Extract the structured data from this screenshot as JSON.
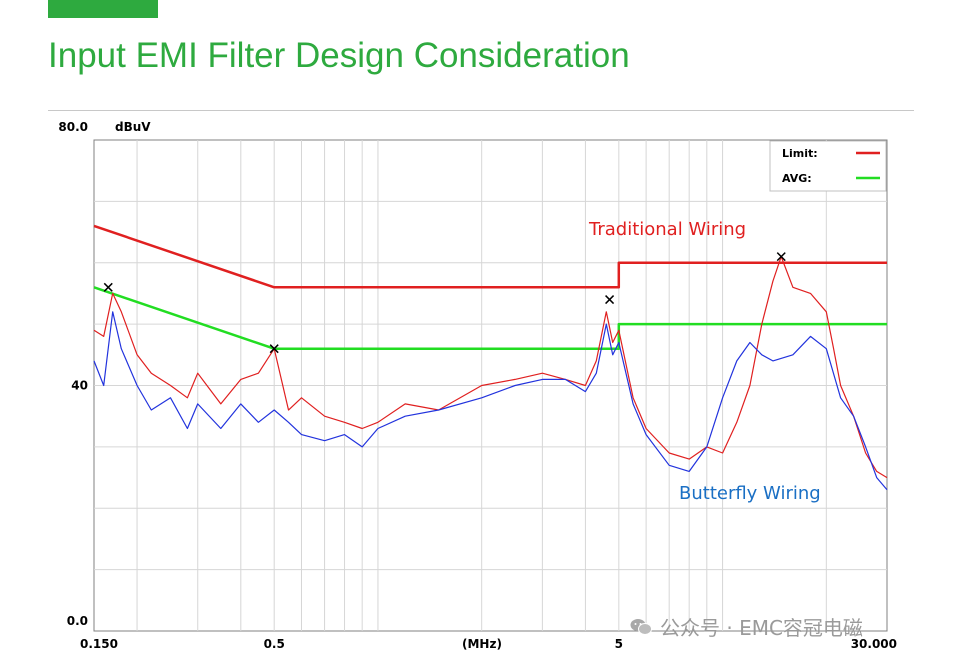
{
  "slide": {
    "title": "Input EMI Filter Design Consideration",
    "accent_color": "#2eaa3f"
  },
  "watermark": {
    "text": "公众号 · EMC容冠电磁",
    "icon": "wechat-icon"
  },
  "chart_data": {
    "type": "line",
    "title": "",
    "ylabel": "dBuV",
    "xlabel": "(MHz)",
    "x_scale": "log",
    "xlim": [
      0.15,
      30
    ],
    "ylim": [
      0,
      80
    ],
    "y_top_label": "80.0",
    "x_ticks": [
      {
        "value": 0.15,
        "label": "0.150"
      },
      {
        "value": 0.5,
        "label": "0.5"
      },
      {
        "value": 5,
        "label": "5"
      },
      {
        "value": 30,
        "label": "30.000"
      }
    ],
    "y_ticks": [
      {
        "value": 80,
        "label": "80.0"
      },
      {
        "value": 40,
        "label": "40"
      },
      {
        "value": 0,
        "label": "0.0"
      }
    ],
    "grid": true,
    "legend": {
      "position": "top-right",
      "entries": [
        {
          "name": "Limit:",
          "color": "#e02020"
        },
        {
          "name": "AVG:",
          "color": "#22dd22"
        }
      ]
    },
    "series": [
      {
        "name": "Limit:",
        "color": "#e02020",
        "points": [
          [
            0.15,
            66
          ],
          [
            0.5,
            56
          ],
          [
            5,
            56
          ],
          [
            5,
            60
          ],
          [
            30,
            60
          ]
        ]
      },
      {
        "name": "AVG:",
        "color": "#22dd22",
        "points": [
          [
            0.15,
            56
          ],
          [
            0.5,
            46
          ],
          [
            5,
            46
          ],
          [
            5,
            50
          ],
          [
            30,
            50
          ]
        ]
      },
      {
        "name": "Traditional Wiring",
        "color": "#e02020",
        "points": [
          [
            0.15,
            49
          ],
          [
            0.16,
            48
          ],
          [
            0.17,
            55
          ],
          [
            0.18,
            52
          ],
          [
            0.2,
            45
          ],
          [
            0.22,
            42
          ],
          [
            0.25,
            40
          ],
          [
            0.28,
            38
          ],
          [
            0.3,
            42
          ],
          [
            0.35,
            37
          ],
          [
            0.4,
            41
          ],
          [
            0.45,
            42
          ],
          [
            0.5,
            46
          ],
          [
            0.55,
            36
          ],
          [
            0.6,
            38
          ],
          [
            0.7,
            35
          ],
          [
            0.8,
            34
          ],
          [
            0.9,
            33
          ],
          [
            1.0,
            34
          ],
          [
            1.2,
            37
          ],
          [
            1.5,
            36
          ],
          [
            2.0,
            40
          ],
          [
            2.5,
            41
          ],
          [
            3.0,
            42
          ],
          [
            3.5,
            41
          ],
          [
            4.0,
            40
          ],
          [
            4.3,
            44
          ],
          [
            4.6,
            52
          ],
          [
            4.8,
            47
          ],
          [
            5.0,
            49
          ],
          [
            5.5,
            38
          ],
          [
            6.0,
            33
          ],
          [
            7.0,
            29
          ],
          [
            8.0,
            28
          ],
          [
            9.0,
            30
          ],
          [
            10.0,
            29
          ],
          [
            11.0,
            34
          ],
          [
            12.0,
            40
          ],
          [
            13.0,
            50
          ],
          [
            14.0,
            57
          ],
          [
            14.8,
            61
          ],
          [
            16.0,
            56
          ],
          [
            18.0,
            55
          ],
          [
            20.0,
            52
          ],
          [
            21.0,
            46
          ],
          [
            22.0,
            40
          ],
          [
            24.0,
            35
          ],
          [
            26.0,
            29
          ],
          [
            28.0,
            26
          ],
          [
            30.0,
            25
          ]
        ]
      },
      {
        "name": "Butterfly Wiring",
        "color": "#2233dd",
        "points": [
          [
            0.15,
            44
          ],
          [
            0.16,
            40
          ],
          [
            0.17,
            52
          ],
          [
            0.18,
            46
          ],
          [
            0.2,
            40
          ],
          [
            0.22,
            36
          ],
          [
            0.25,
            38
          ],
          [
            0.28,
            33
          ],
          [
            0.3,
            37
          ],
          [
            0.35,
            33
          ],
          [
            0.4,
            37
          ],
          [
            0.45,
            34
          ],
          [
            0.5,
            36
          ],
          [
            0.55,
            34
          ],
          [
            0.6,
            32
          ],
          [
            0.7,
            31
          ],
          [
            0.8,
            32
          ],
          [
            0.9,
            30
          ],
          [
            1.0,
            33
          ],
          [
            1.2,
            35
          ],
          [
            1.5,
            36
          ],
          [
            2.0,
            38
          ],
          [
            2.5,
            40
          ],
          [
            3.0,
            41
          ],
          [
            3.5,
            41
          ],
          [
            4.0,
            39
          ],
          [
            4.3,
            42
          ],
          [
            4.6,
            50
          ],
          [
            4.8,
            45
          ],
          [
            5.0,
            47
          ],
          [
            5.5,
            37
          ],
          [
            6.0,
            32
          ],
          [
            7.0,
            27
          ],
          [
            8.0,
            26
          ],
          [
            9.0,
            30
          ],
          [
            10.0,
            38
          ],
          [
            11.0,
            44
          ],
          [
            12.0,
            47
          ],
          [
            13.0,
            45
          ],
          [
            14.0,
            44
          ],
          [
            16.0,
            45
          ],
          [
            18.0,
            48
          ],
          [
            20.0,
            46
          ],
          [
            22.0,
            38
          ],
          [
            24.0,
            35
          ],
          [
            26.0,
            30
          ],
          [
            28.0,
            25
          ],
          [
            30.0,
            23
          ]
        ]
      }
    ],
    "peak_markers": [
      [
        0.165,
        56
      ],
      [
        0.5,
        46
      ],
      [
        4.7,
        54
      ],
      [
        14.8,
        61
      ]
    ],
    "annotations": [
      {
        "text": "Traditional Wiring",
        "color": "#e02020"
      },
      {
        "text": "Butterfly Wiring",
        "color": "#1a6fc4"
      }
    ]
  }
}
